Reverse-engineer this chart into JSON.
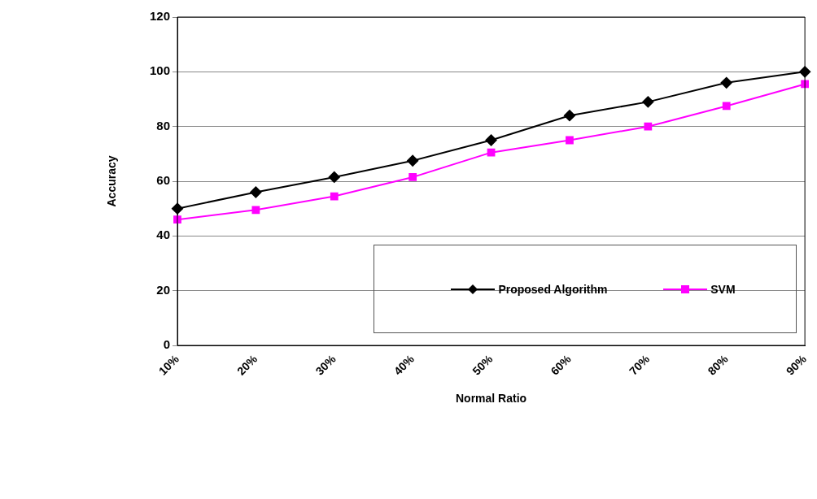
{
  "chart_data": {
    "type": "line",
    "xlabel": "Normal Ratio",
    "ylabel": "Accuracy",
    "categories": [
      "10%",
      "20%",
      "30%",
      "40%",
      "50%",
      "60%",
      "70%",
      "80%",
      "90%"
    ],
    "series": [
      {
        "name": "Proposed Algorithm",
        "color": "#000000",
        "marker": "diamond",
        "values": [
          50,
          56,
          61.5,
          67.5,
          75,
          84,
          89,
          96,
          100
        ]
      },
      {
        "name": "SVM",
        "color": "#ff00ff",
        "marker": "square",
        "values": [
          46,
          49.5,
          54.5,
          61.5,
          70.5,
          75,
          80,
          87.5,
          95.5
        ]
      }
    ],
    "ylim": [
      0,
      120
    ],
    "yticks": [
      0,
      20,
      40,
      60,
      80,
      100,
      120
    ],
    "grid": "y",
    "legend": "bottom right",
    "line_style": "solid"
  }
}
